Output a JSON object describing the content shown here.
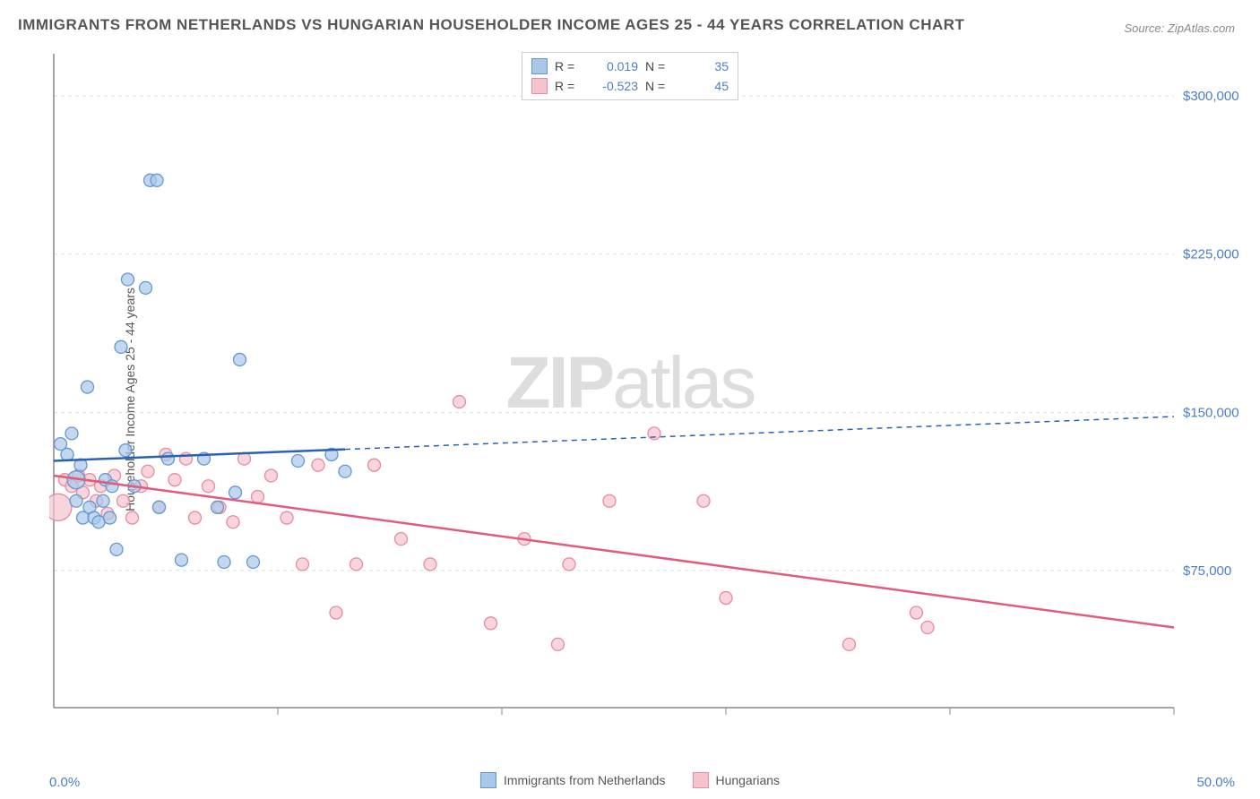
{
  "title": "IMMIGRANTS FROM NETHERLANDS VS HUNGARIAN HOUSEHOLDER INCOME AGES 25 - 44 YEARS CORRELATION CHART",
  "source": "Source: ZipAtlas.com",
  "watermark": {
    "bold": "ZIP",
    "light": "atlas"
  },
  "y_axis": {
    "label": "Householder Income Ages 25 - 44 years",
    "ticks": [
      {
        "value": 75000,
        "label": "$75,000"
      },
      {
        "value": 150000,
        "label": "$150,000"
      },
      {
        "value": 225000,
        "label": "$225,000"
      },
      {
        "value": 300000,
        "label": "$300,000"
      }
    ]
  },
  "x_axis": {
    "min_label": "0.0%",
    "max_label": "50.0%",
    "min": 0,
    "max": 50,
    "tick_positions": [
      10,
      20,
      30,
      40,
      50
    ]
  },
  "plot": {
    "xlim": [
      0,
      50
    ],
    "ylim": [
      10000,
      320000
    ],
    "background": "#ffffff",
    "grid_color": "#dddddd",
    "axis_color": "#888888",
    "y_tick_label_color": "#4a7ec9"
  },
  "series": [
    {
      "name": "Immigrants from Netherlands",
      "short": "netherlands",
      "fill": "#a9c7e8",
      "stroke": "#6598d0",
      "line_color": "#2a62b3",
      "R": "0.019",
      "N": "35",
      "regression": {
        "x1": 0,
        "y1": 127000,
        "x2": 50,
        "y2": 148000,
        "solid_until_x": 13
      },
      "points": [
        {
          "x": 0.3,
          "y": 135000,
          "r": 7
        },
        {
          "x": 0.6,
          "y": 130000,
          "r": 7
        },
        {
          "x": 0.8,
          "y": 140000,
          "r": 7
        },
        {
          "x": 1.0,
          "y": 118000,
          "r": 10
        },
        {
          "x": 1.0,
          "y": 108000,
          "r": 7
        },
        {
          "x": 1.2,
          "y": 125000,
          "r": 7
        },
        {
          "x": 1.3,
          "y": 100000,
          "r": 7
        },
        {
          "x": 1.5,
          "y": 162000,
          "r": 7
        },
        {
          "x": 1.6,
          "y": 105000,
          "r": 7
        },
        {
          "x": 1.8,
          "y": 100000,
          "r": 7
        },
        {
          "x": 2.0,
          "y": 98000,
          "r": 7
        },
        {
          "x": 2.2,
          "y": 108000,
          "r": 7
        },
        {
          "x": 2.3,
          "y": 118000,
          "r": 7
        },
        {
          "x": 2.5,
          "y": 100000,
          "r": 7
        },
        {
          "x": 2.6,
          "y": 115000,
          "r": 7
        },
        {
          "x": 2.8,
          "y": 85000,
          "r": 7
        },
        {
          "x": 3.0,
          "y": 181000,
          "r": 7
        },
        {
          "x": 3.2,
          "y": 132000,
          "r": 7
        },
        {
          "x": 3.3,
          "y": 213000,
          "r": 7
        },
        {
          "x": 3.6,
          "y": 115000,
          "r": 7
        },
        {
          "x": 4.1,
          "y": 209000,
          "r": 7
        },
        {
          "x": 4.3,
          "y": 260000,
          "r": 7
        },
        {
          "x": 4.6,
          "y": 260000,
          "r": 7
        },
        {
          "x": 4.7,
          "y": 105000,
          "r": 7
        },
        {
          "x": 5.1,
          "y": 128000,
          "r": 7
        },
        {
          "x": 5.7,
          "y": 80000,
          "r": 7
        },
        {
          "x": 6.7,
          "y": 128000,
          "r": 7
        },
        {
          "x": 7.3,
          "y": 105000,
          "r": 7
        },
        {
          "x": 7.6,
          "y": 79000,
          "r": 7
        },
        {
          "x": 8.1,
          "y": 112000,
          "r": 7
        },
        {
          "x": 8.3,
          "y": 175000,
          "r": 7
        },
        {
          "x": 8.9,
          "y": 79000,
          "r": 7
        },
        {
          "x": 10.9,
          "y": 127000,
          "r": 7
        },
        {
          "x": 12.4,
          "y": 130000,
          "r": 7
        },
        {
          "x": 13.0,
          "y": 122000,
          "r": 7
        }
      ]
    },
    {
      "name": "Hungarians",
      "short": "hungarians",
      "fill": "#f5c3cd",
      "stroke": "#e88aa0",
      "line_color": "#e05b7d",
      "R": "-0.523",
      "N": "45",
      "regression": {
        "x1": 0,
        "y1": 120000,
        "x2": 50,
        "y2": 48000,
        "solid_until_x": 50
      },
      "points": [
        {
          "x": 0.2,
          "y": 105000,
          "r": 15
        },
        {
          "x": 0.5,
          "y": 118000,
          "r": 7
        },
        {
          "x": 0.8,
          "y": 115000,
          "r": 7
        },
        {
          "x": 1.1,
          "y": 120000,
          "r": 7
        },
        {
          "x": 1.3,
          "y": 112000,
          "r": 7
        },
        {
          "x": 1.6,
          "y": 118000,
          "r": 7
        },
        {
          "x": 1.9,
          "y": 108000,
          "r": 7
        },
        {
          "x": 2.1,
          "y": 115000,
          "r": 7
        },
        {
          "x": 2.4,
          "y": 102000,
          "r": 7
        },
        {
          "x": 2.7,
          "y": 120000,
          "r": 7
        },
        {
          "x": 3.1,
          "y": 108000,
          "r": 7
        },
        {
          "x": 3.5,
          "y": 100000,
          "r": 7
        },
        {
          "x": 3.9,
          "y": 115000,
          "r": 7
        },
        {
          "x": 4.2,
          "y": 122000,
          "r": 7
        },
        {
          "x": 4.7,
          "y": 105000,
          "r": 7
        },
        {
          "x": 5.0,
          "y": 130000,
          "r": 7
        },
        {
          "x": 5.4,
          "y": 118000,
          "r": 7
        },
        {
          "x": 5.9,
          "y": 128000,
          "r": 7
        },
        {
          "x": 6.3,
          "y": 100000,
          "r": 7
        },
        {
          "x": 6.9,
          "y": 115000,
          "r": 7
        },
        {
          "x": 7.4,
          "y": 105000,
          "r": 7
        },
        {
          "x": 8.0,
          "y": 98000,
          "r": 7
        },
        {
          "x": 8.5,
          "y": 128000,
          "r": 7
        },
        {
          "x": 9.1,
          "y": 110000,
          "r": 7
        },
        {
          "x": 9.7,
          "y": 120000,
          "r": 7
        },
        {
          "x": 10.4,
          "y": 100000,
          "r": 7
        },
        {
          "x": 11.1,
          "y": 78000,
          "r": 7
        },
        {
          "x": 11.8,
          "y": 125000,
          "r": 7
        },
        {
          "x": 12.6,
          "y": 55000,
          "r": 7
        },
        {
          "x": 13.5,
          "y": 78000,
          "r": 7
        },
        {
          "x": 14.3,
          "y": 125000,
          "r": 7
        },
        {
          "x": 15.5,
          "y": 90000,
          "r": 7
        },
        {
          "x": 16.8,
          "y": 78000,
          "r": 7
        },
        {
          "x": 18.1,
          "y": 155000,
          "r": 7
        },
        {
          "x": 19.5,
          "y": 50000,
          "r": 7
        },
        {
          "x": 21.0,
          "y": 90000,
          "r": 7
        },
        {
          "x": 22.5,
          "y": 40000,
          "r": 7
        },
        {
          "x": 23.0,
          "y": 78000,
          "r": 7
        },
        {
          "x": 24.8,
          "y": 108000,
          "r": 7
        },
        {
          "x": 26.8,
          "y": 140000,
          "r": 7
        },
        {
          "x": 29.0,
          "y": 108000,
          "r": 7
        },
        {
          "x": 30.0,
          "y": 62000,
          "r": 7
        },
        {
          "x": 35.5,
          "y": 40000,
          "r": 7
        },
        {
          "x": 38.5,
          "y": 55000,
          "r": 7
        },
        {
          "x": 39.0,
          "y": 48000,
          "r": 7
        }
      ]
    }
  ]
}
